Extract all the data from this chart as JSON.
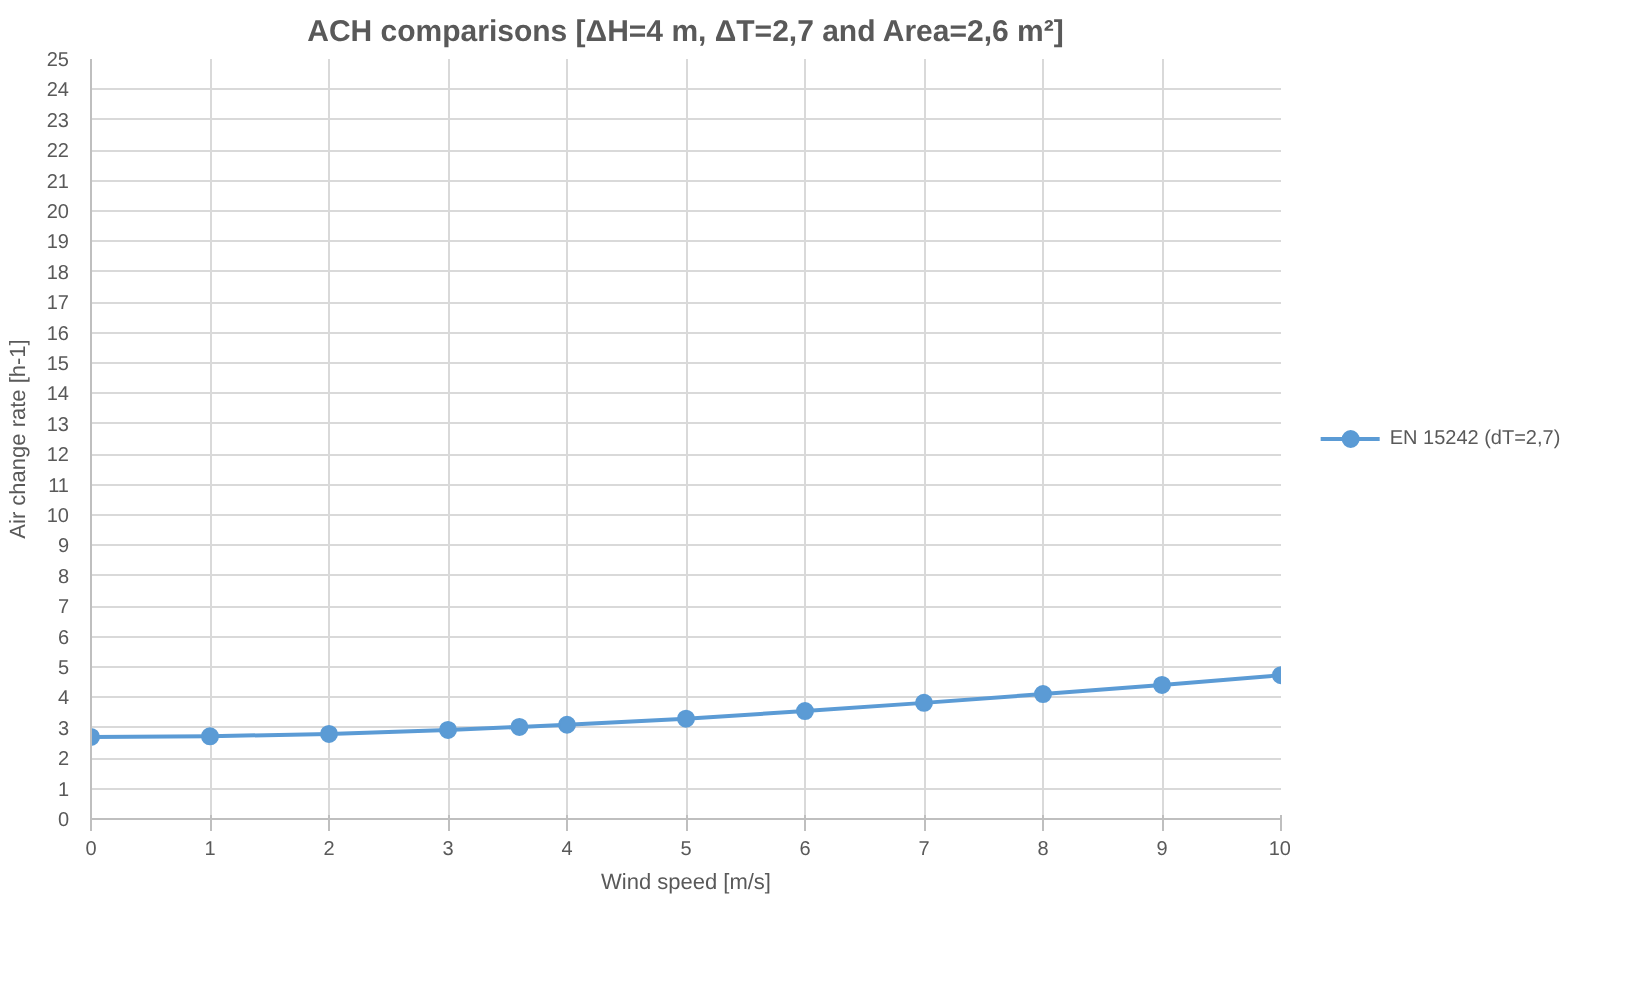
{
  "chart_data": {
    "type": "line",
    "title": "ACH comparisons [ΔH=4 m, ΔT=2,7 and Area=2,6 m²]",
    "xlabel": "Wind speed [m/s]",
    "ylabel": "Air change rate [h-1]",
    "x": [
      0,
      1,
      2,
      3,
      3.6,
      4,
      5,
      6,
      7,
      8,
      9,
      10
    ],
    "series": [
      {
        "name": "EN 15242 (dT=2,7)",
        "color": "#5b9bd5",
        "values": [
          2.7,
          2.72,
          2.8,
          2.93,
          3.03,
          3.1,
          3.3,
          3.55,
          3.82,
          4.11,
          4.41,
          4.73
        ]
      }
    ],
    "xlim": [
      0,
      10
    ],
    "xticks": [
      0,
      1,
      2,
      3,
      4,
      5,
      6,
      7,
      8,
      9,
      10
    ],
    "ylim": [
      0,
      25
    ],
    "yticks": [
      0,
      1,
      2,
      3,
      4,
      5,
      6,
      7,
      8,
      9,
      10,
      11,
      12,
      13,
      14,
      15,
      16,
      17,
      18,
      19,
      20,
      21,
      22,
      23,
      24,
      25
    ],
    "grid": true,
    "legend": "right",
    "marker": "circle",
    "line_style": "solid"
  }
}
